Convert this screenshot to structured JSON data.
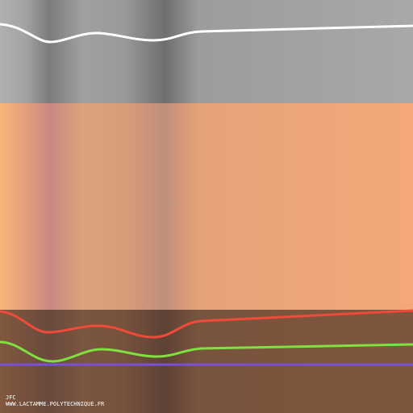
{
  "credits": {
    "author": "JFC",
    "url": "WWW.LACTAMME.POLYTECHNIQUE.FR"
  }
}
